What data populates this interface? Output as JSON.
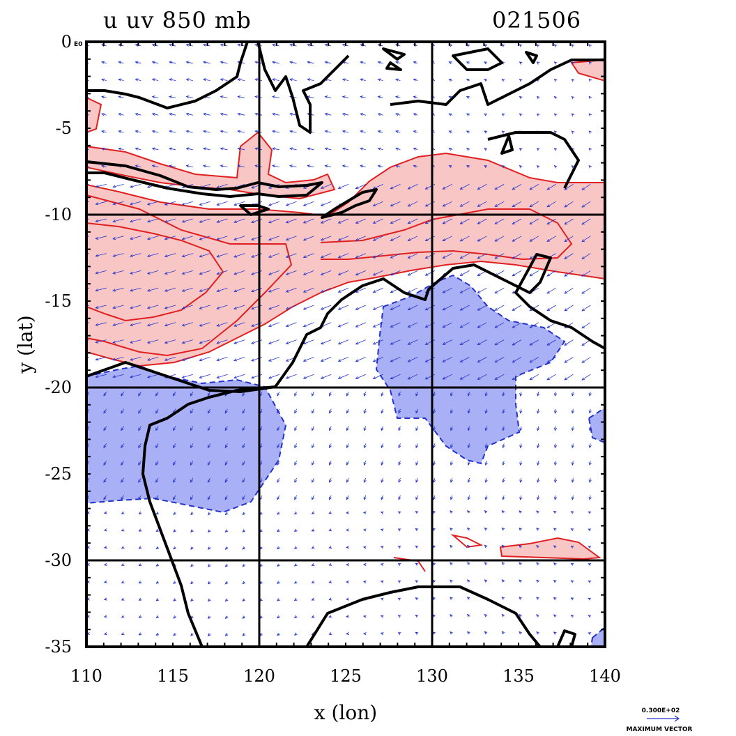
{
  "header": {
    "title_left": "u uv 850 mb",
    "title_right": "021506"
  },
  "axes": {
    "xlabel": "x (lon)",
    "ylabel": "y (lat)",
    "x_ticks": [
      "110",
      "115",
      "120",
      "125",
      "130",
      "135",
      "140"
    ],
    "y_ticks": [
      "0",
      "-5",
      "-10",
      "-15",
      "-20",
      "-25",
      "-30",
      "-35"
    ],
    "y_top_suffix": "E0"
  },
  "reference_vector": {
    "magnitude": "0.300E+02",
    "label": "MAXIMUM VECTOR"
  },
  "colors": {
    "positive_fill": "#f9c6c6",
    "positive_line": "#e02020",
    "negative_fill": "#aab0f5",
    "negative_line": "#2233cc",
    "coast": "#000000",
    "vectors": "#2233cc"
  },
  "chart_data": {
    "type": "map",
    "field": "u wind",
    "overlay": "uv wind vectors",
    "level": "850 mb",
    "time": "021506",
    "xlim": [
      110,
      140
    ],
    "ylim": [
      -35,
      0
    ],
    "grid_lines": {
      "lon": [
        120,
        130
      ],
      "lat": [
        -10,
        -20,
        -30
      ]
    }
  }
}
